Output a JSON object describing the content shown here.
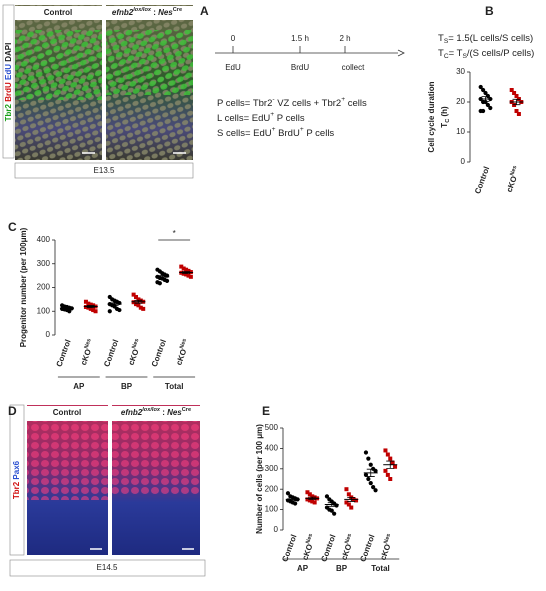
{
  "panels": [
    "A",
    "B",
    "C",
    "D",
    "E"
  ],
  "panel_a": {
    "genotypes": [
      [
        {
          "t": "Control"
        }
      ],
      [
        {
          "t": "efnb2",
          "italic": true
        },
        {
          "t": "lox/lox",
          "sup": true,
          "italic": true
        },
        {
          "t": " : "
        },
        {
          "t": "Nes",
          "italic": true
        },
        {
          "t": "Cre",
          "sup": true
        }
      ]
    ],
    "stain": [
      {
        "t": "Tbr2 ",
        "color": "#1aa01a"
      },
      {
        "t": "BrdU ",
        "color": "#d01010"
      },
      {
        "t": "EdU ",
        "color": "#2a4fd0"
      },
      {
        "t": "DAPI",
        "color": "#222222"
      }
    ],
    "stage": "E13.5"
  },
  "timeline": {
    "times": [
      "0",
      "1.5 h",
      "2 h"
    ],
    "events": [
      {
        "t": "EdU",
        "color": "#2a6fc0"
      },
      {
        "t": "BrdU",
        "color": "#d01010"
      },
      {
        "t": "collect",
        "color": "#222222"
      }
    ]
  },
  "definitions": [
    [
      {
        "t": "P cells= Tbr2"
      },
      {
        "t": "-",
        "sup": true
      },
      {
        "t": " VZ cells + Tbr2"
      },
      {
        "t": "+",
        "sup": true
      },
      {
        "t": " cells"
      }
    ],
    [
      {
        "t": "L cells= EdU"
      },
      {
        "t": "+",
        "sup": true
      },
      {
        "t": " P cells"
      }
    ],
    [
      {
        "t": "S cells= EdU"
      },
      {
        "t": "+",
        "sup": true
      },
      {
        "t": " BrdU"
      },
      {
        "t": "+",
        "sup": true
      },
      {
        "t": " P cells"
      }
    ]
  ],
  "formulas": [
    [
      {
        "t": "T"
      },
      {
        "t": "S",
        "sub": true
      },
      {
        "t": "= 1.5(L cells/S cells)"
      }
    ],
    [
      {
        "t": "T"
      },
      {
        "t": "C",
        "sub": true
      },
      {
        "t": "= T"
      },
      {
        "t": "S",
        "sub": true
      },
      {
        "t": "/(S cells/P cells)"
      }
    ]
  ],
  "panel_d": {
    "genotypes": [
      [
        {
          "t": "Control"
        }
      ],
      [
        {
          "t": "efnb2",
          "italic": true
        },
        {
          "t": "lox/lox",
          "sup": true,
          "italic": true
        },
        {
          "t": " : "
        },
        {
          "t": "Nes",
          "italic": true
        },
        {
          "t": "Cre",
          "sup": true
        }
      ]
    ],
    "stain": [
      {
        "t": "Tbr2 ",
        "color": "#d01010"
      },
      {
        "t": "Pax6",
        "color": "#2a4fd0"
      }
    ],
    "stage": "E14.5"
  },
  "chart_data": [
    {
      "type": "dot",
      "ylabel": [
        [
          {
            "t": "Cell cycle duration"
          }
        ],
        [
          {
            "t": "T"
          },
          {
            "t": "C",
            "sub": true
          },
          {
            "t": " (h)"
          }
        ]
      ],
      "ylim": [
        0,
        30
      ],
      "yticks": [
        0,
        10,
        20,
        30
      ],
      "sets": [
        {
          "groups": [
            {
              "label": [
                {
                  "t": "Control"
                }
              ],
              "color": "#000000",
              "marker": "circle",
              "values": [
                25,
                24,
                23,
                22,
                21,
                21,
                20,
                20,
                19,
                18,
                17,
                17
              ],
              "mean": 21,
              "sem": 0.8
            },
            {
              "label": [
                {
                  "t": "cKO"
                },
                {
                  "t": "Nes",
                  "sup": true
                }
              ],
              "color": "#c00000",
              "marker": "square",
              "values": [
                24,
                23,
                22,
                21,
                20,
                20,
                19,
                17,
                16
              ],
              "mean": 20,
              "sem": 0.9
            }
          ]
        }
      ]
    },
    {
      "type": "dot",
      "ylabel": [
        [
          {
            "t": "Progenitor number (per 100μm)"
          }
        ]
      ],
      "ylim": [
        0,
        400
      ],
      "yticks": [
        0,
        100,
        200,
        300,
        400
      ],
      "sets": [
        {
          "name": "AP",
          "groups": [
            {
              "label": [
                {
                  "t": "Control"
                }
              ],
              "color": "#000000",
              "marker": "circle",
              "values": [
                125,
                120,
                118,
                115,
                112,
                110,
                108,
                105,
                100
              ],
              "mean": 113,
              "sem": 3
            },
            {
              "label": [
                {
                  "t": "cKO"
                },
                {
                  "t": "Nes",
                  "sup": true
                }
              ],
              "color": "#c00000",
              "marker": "square",
              "values": [
                140,
                132,
                128,
                125,
                120,
                118,
                115,
                110,
                105,
                100
              ],
              "mean": 120,
              "sem": 4
            }
          ]
        },
        {
          "name": "BP",
          "groups": [
            {
              "label": [
                {
                  "t": "Control"
                }
              ],
              "color": "#000000",
              "marker": "circle",
              "values": [
                160,
                150,
                145,
                140,
                135,
                130,
                125,
                120,
                110,
                105,
                100
              ],
              "mean": 130,
              "sem": 5
            },
            {
              "label": [
                {
                  "t": "cKO"
                },
                {
                  "t": "Nes",
                  "sup": true
                }
              ],
              "color": "#c00000",
              "marker": "square",
              "values": [
                170,
                160,
                150,
                145,
                140,
                138,
                130,
                125,
                115,
                110
              ],
              "mean": 140,
              "sem": 6
            }
          ]
        },
        {
          "name": "Total",
          "annotation": "*",
          "groups": [
            {
              "label": [
                {
                  "t": "Control"
                }
              ],
              "color": "#000000",
              "marker": "circle",
              "values": [
                275,
                268,
                260,
                255,
                250,
                245,
                240,
                238,
                232,
                228,
                222,
                218
              ],
              "mean": 245,
              "sem": 5
            },
            {
              "label": [
                {
                  "t": "cKO"
                },
                {
                  "t": "Nes",
                  "sup": true
                }
              ],
              "color": "#c00000",
              "marker": "square",
              "values": [
                288,
                280,
                275,
                270,
                265,
                262,
                258,
                255,
                250,
                245
              ],
              "mean": 263,
              "sem": 4
            }
          ]
        }
      ]
    },
    {
      "type": "dot",
      "ylabel": [
        [
          {
            "t": "Number of cells (per 100 μm)"
          }
        ]
      ],
      "ylim": [
        0,
        500
      ],
      "yticks": [
        0,
        100,
        200,
        300,
        400,
        500
      ],
      "sets": [
        {
          "name": "AP",
          "groups": [
            {
              "label": [
                {
                  "t": "Control"
                }
              ],
              "color": "#000000",
              "marker": "circle",
              "values": [
                180,
                165,
                160,
                155,
                150,
                145,
                140,
                135,
                130
              ],
              "mean": 150,
              "sem": 6
            },
            {
              "label": [
                {
                  "t": "cKO"
                },
                {
                  "t": "Nes",
                  "sup": true
                }
              ],
              "color": "#c00000",
              "marker": "square",
              "values": [
                185,
                175,
                165,
                160,
                155,
                150,
                145,
                140,
                135
              ],
              "mean": 155,
              "sem": 6
            }
          ]
        },
        {
          "name": "BP",
          "groups": [
            {
              "label": [
                {
                  "t": "Control"
                }
              ],
              "color": "#000000",
              "marker": "circle",
              "values": [
                165,
                150,
                140,
                130,
                120,
                110,
                100,
                95,
                80
              ],
              "mean": 125,
              "sem": 9
            },
            {
              "label": [
                {
                  "t": "cKO"
                },
                {
                  "t": "Nes",
                  "sup": true
                }
              ],
              "color": "#c00000",
              "marker": "square",
              "values": [
                200,
                175,
                160,
                150,
                145,
                135,
                125,
                110
              ],
              "mean": 150,
              "sem": 10
            }
          ]
        },
        {
          "name": "Total",
          "groups": [
            {
              "label": [
                {
                  "t": "Control"
                }
              ],
              "color": "#000000",
              "marker": "circle",
              "values": [
                380,
                350,
                320,
                300,
                290,
                270,
                250,
                230,
                210,
                195
              ],
              "mean": 280,
              "sem": 18
            },
            {
              "label": [
                {
                  "t": "cKO"
                },
                {
                  "t": "Nes",
                  "sup": true
                }
              ],
              "color": "#c00000",
              "marker": "square",
              "values": [
                390,
                370,
                350,
                330,
                310,
                290,
                270,
                250
              ],
              "mean": 320,
              "sem": 18
            }
          ]
        }
      ]
    }
  ]
}
